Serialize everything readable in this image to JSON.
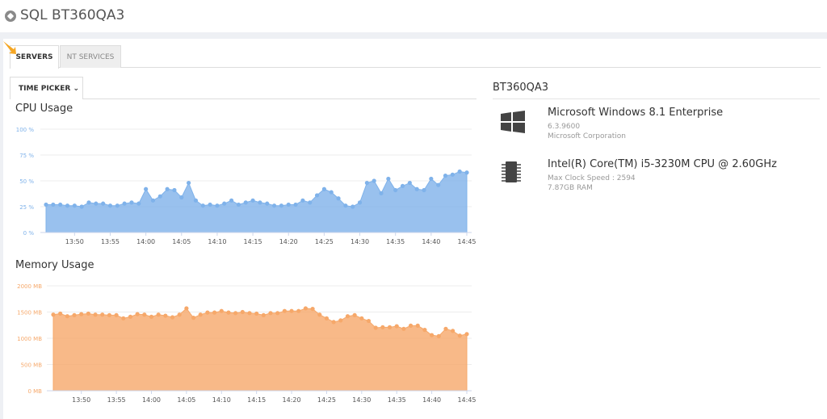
{
  "header": {
    "title": "SQL BT360QA3",
    "icon": "database-icon"
  },
  "tabs": [
    {
      "label": "SERVERS",
      "active": true
    },
    {
      "label": "NT SERVICES",
      "active": false
    }
  ],
  "time_picker": {
    "label": "TIME PICKER",
    "icon": "chevron-down-icon"
  },
  "server": {
    "name": "BT360QA3",
    "os": {
      "icon": "windows-icon",
      "name": "Microsoft Windows 8.1 Enterprise",
      "version": "6.3.9600",
      "vendor": "Microsoft Corporation"
    },
    "cpu": {
      "icon": "chip-icon",
      "name": "Intel(R) Core(TM) i5-3230M CPU @ 2.60GHz",
      "clock": "Max Clock Speed : 2594",
      "ram": "7.87GB RAM"
    }
  },
  "chart_data": [
    {
      "type": "area",
      "title": "CPU Usage",
      "color": "#7fb2ea",
      "grid": true,
      "x_start": "13:46",
      "x_step_minutes": 1,
      "xticks": [
        "13:50",
        "13:55",
        "14:00",
        "14:05",
        "14:10",
        "14:15",
        "14:20",
        "14:25",
        "14:30",
        "14:35",
        "14:40",
        "14:45"
      ],
      "yticks": [
        "0 %",
        "25 %",
        "50 %",
        "75 %",
        "100 %"
      ],
      "ylim": [
        0,
        100
      ],
      "values": [
        27,
        27,
        27,
        26,
        26,
        25,
        29,
        28,
        28,
        26,
        26,
        28,
        29,
        28,
        42,
        31,
        35,
        42,
        41,
        34,
        48,
        31,
        26,
        27,
        26,
        28,
        31,
        27,
        29,
        31,
        29,
        28,
        26,
        26,
        27,
        27,
        31,
        29,
        36,
        42,
        39,
        33,
        26,
        25,
        29,
        48,
        50,
        38,
        52,
        41,
        45,
        48,
        42,
        41,
        52,
        46,
        55,
        56,
        59,
        58
      ]
    },
    {
      "type": "area",
      "title": "Memory Usage",
      "color": "#f6a86a",
      "grid": true,
      "x_start": "13:46",
      "x_step_minutes": 1,
      "xticks": [
        "13:50",
        "13:55",
        "14:00",
        "14:05",
        "14:10",
        "14:15",
        "14:20",
        "14:25",
        "14:30",
        "14:35",
        "14:40",
        "14:45"
      ],
      "yticks": [
        "0 MB",
        "500 MB",
        "1000 MB",
        "1500 MB",
        "2000 MB"
      ],
      "ylim": [
        0,
        2000
      ],
      "values": [
        1450,
        1470,
        1420,
        1440,
        1460,
        1470,
        1450,
        1450,
        1440,
        1440,
        1380,
        1410,
        1460,
        1450,
        1410,
        1450,
        1430,
        1400,
        1450,
        1570,
        1390,
        1450,
        1490,
        1490,
        1520,
        1490,
        1480,
        1500,
        1480,
        1470,
        1440,
        1480,
        1480,
        1520,
        1520,
        1520,
        1570,
        1560,
        1450,
        1380,
        1310,
        1340,
        1420,
        1440,
        1380,
        1330,
        1200,
        1210,
        1210,
        1230,
        1180,
        1240,
        1240,
        1160,
        1060,
        1040,
        1180,
        1140,
        1050,
        1080
      ]
    }
  ]
}
